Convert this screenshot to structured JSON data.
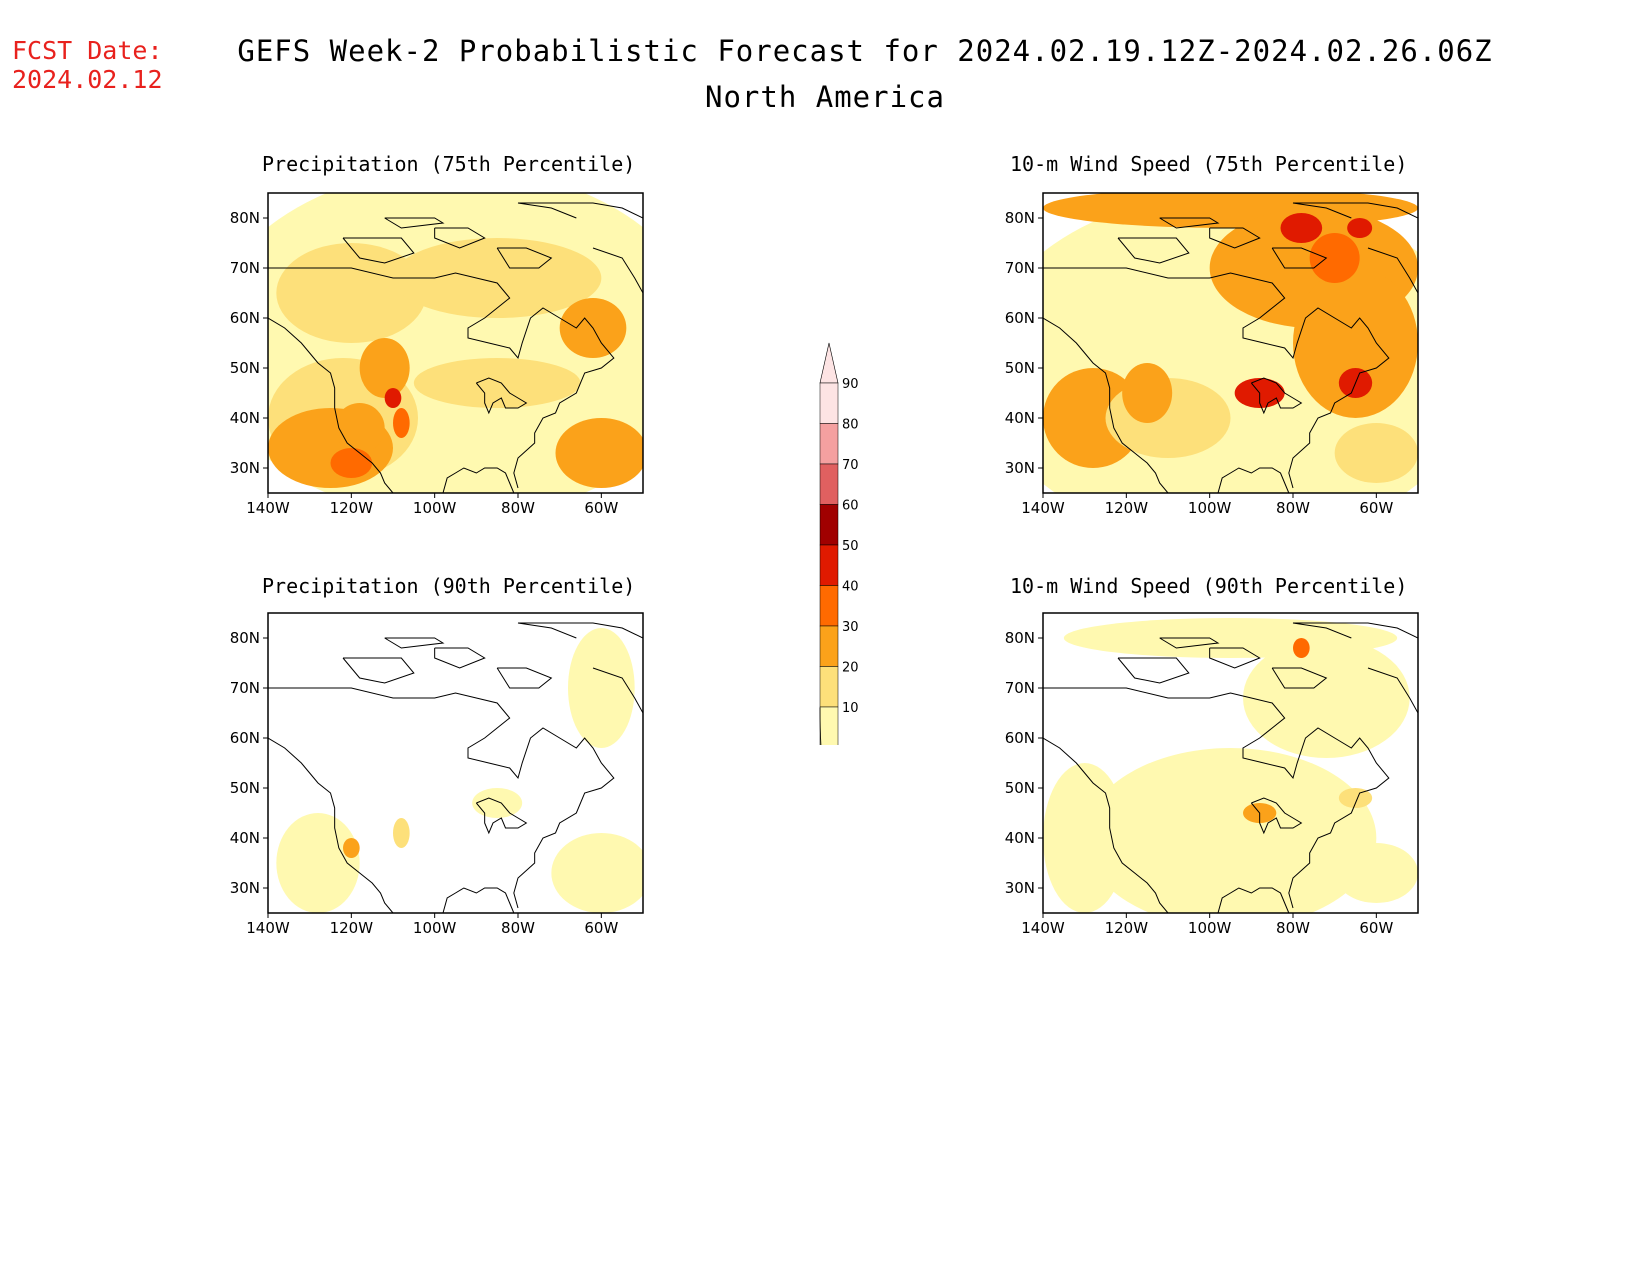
{
  "header": {
    "fcst_label": "FCST Date:",
    "fcst_date": "2024.02.12",
    "title_line1": "GEFS Week-2 Probabilistic Forecast for 2024.02.19.12Z-2024.02.26.06Z",
    "title_line2": "North America"
  },
  "axes": {
    "lat_ticks": [
      "80N",
      "70N",
      "60N",
      "50N",
      "40N",
      "30N"
    ],
    "lon_ticks": [
      "140W",
      "120W",
      "100W",
      "80W",
      "60W"
    ]
  },
  "panels": [
    {
      "title": "Precipitation (75th Percentile)"
    },
    {
      "title": "10-m Wind Speed (75th Percentile)"
    },
    {
      "title": "Precipitation (90th Percentile)"
    },
    {
      "title": "10-m Wind Speed (90th Percentile)"
    }
  ],
  "colorbar": {
    "levels": [
      "90",
      "80",
      "70",
      "60",
      "50",
      "40",
      "30",
      "20",
      "10"
    ],
    "colors": {
      "10": "#fff9b0",
      "20": "#fde07a",
      "30": "#fba21a",
      "40": "#ff6a00",
      "50": "#e01a00",
      "60": "#a00000",
      "70": "#e06060",
      "80": "#f4a0a0",
      "90": "#fde4e4"
    }
  }
}
